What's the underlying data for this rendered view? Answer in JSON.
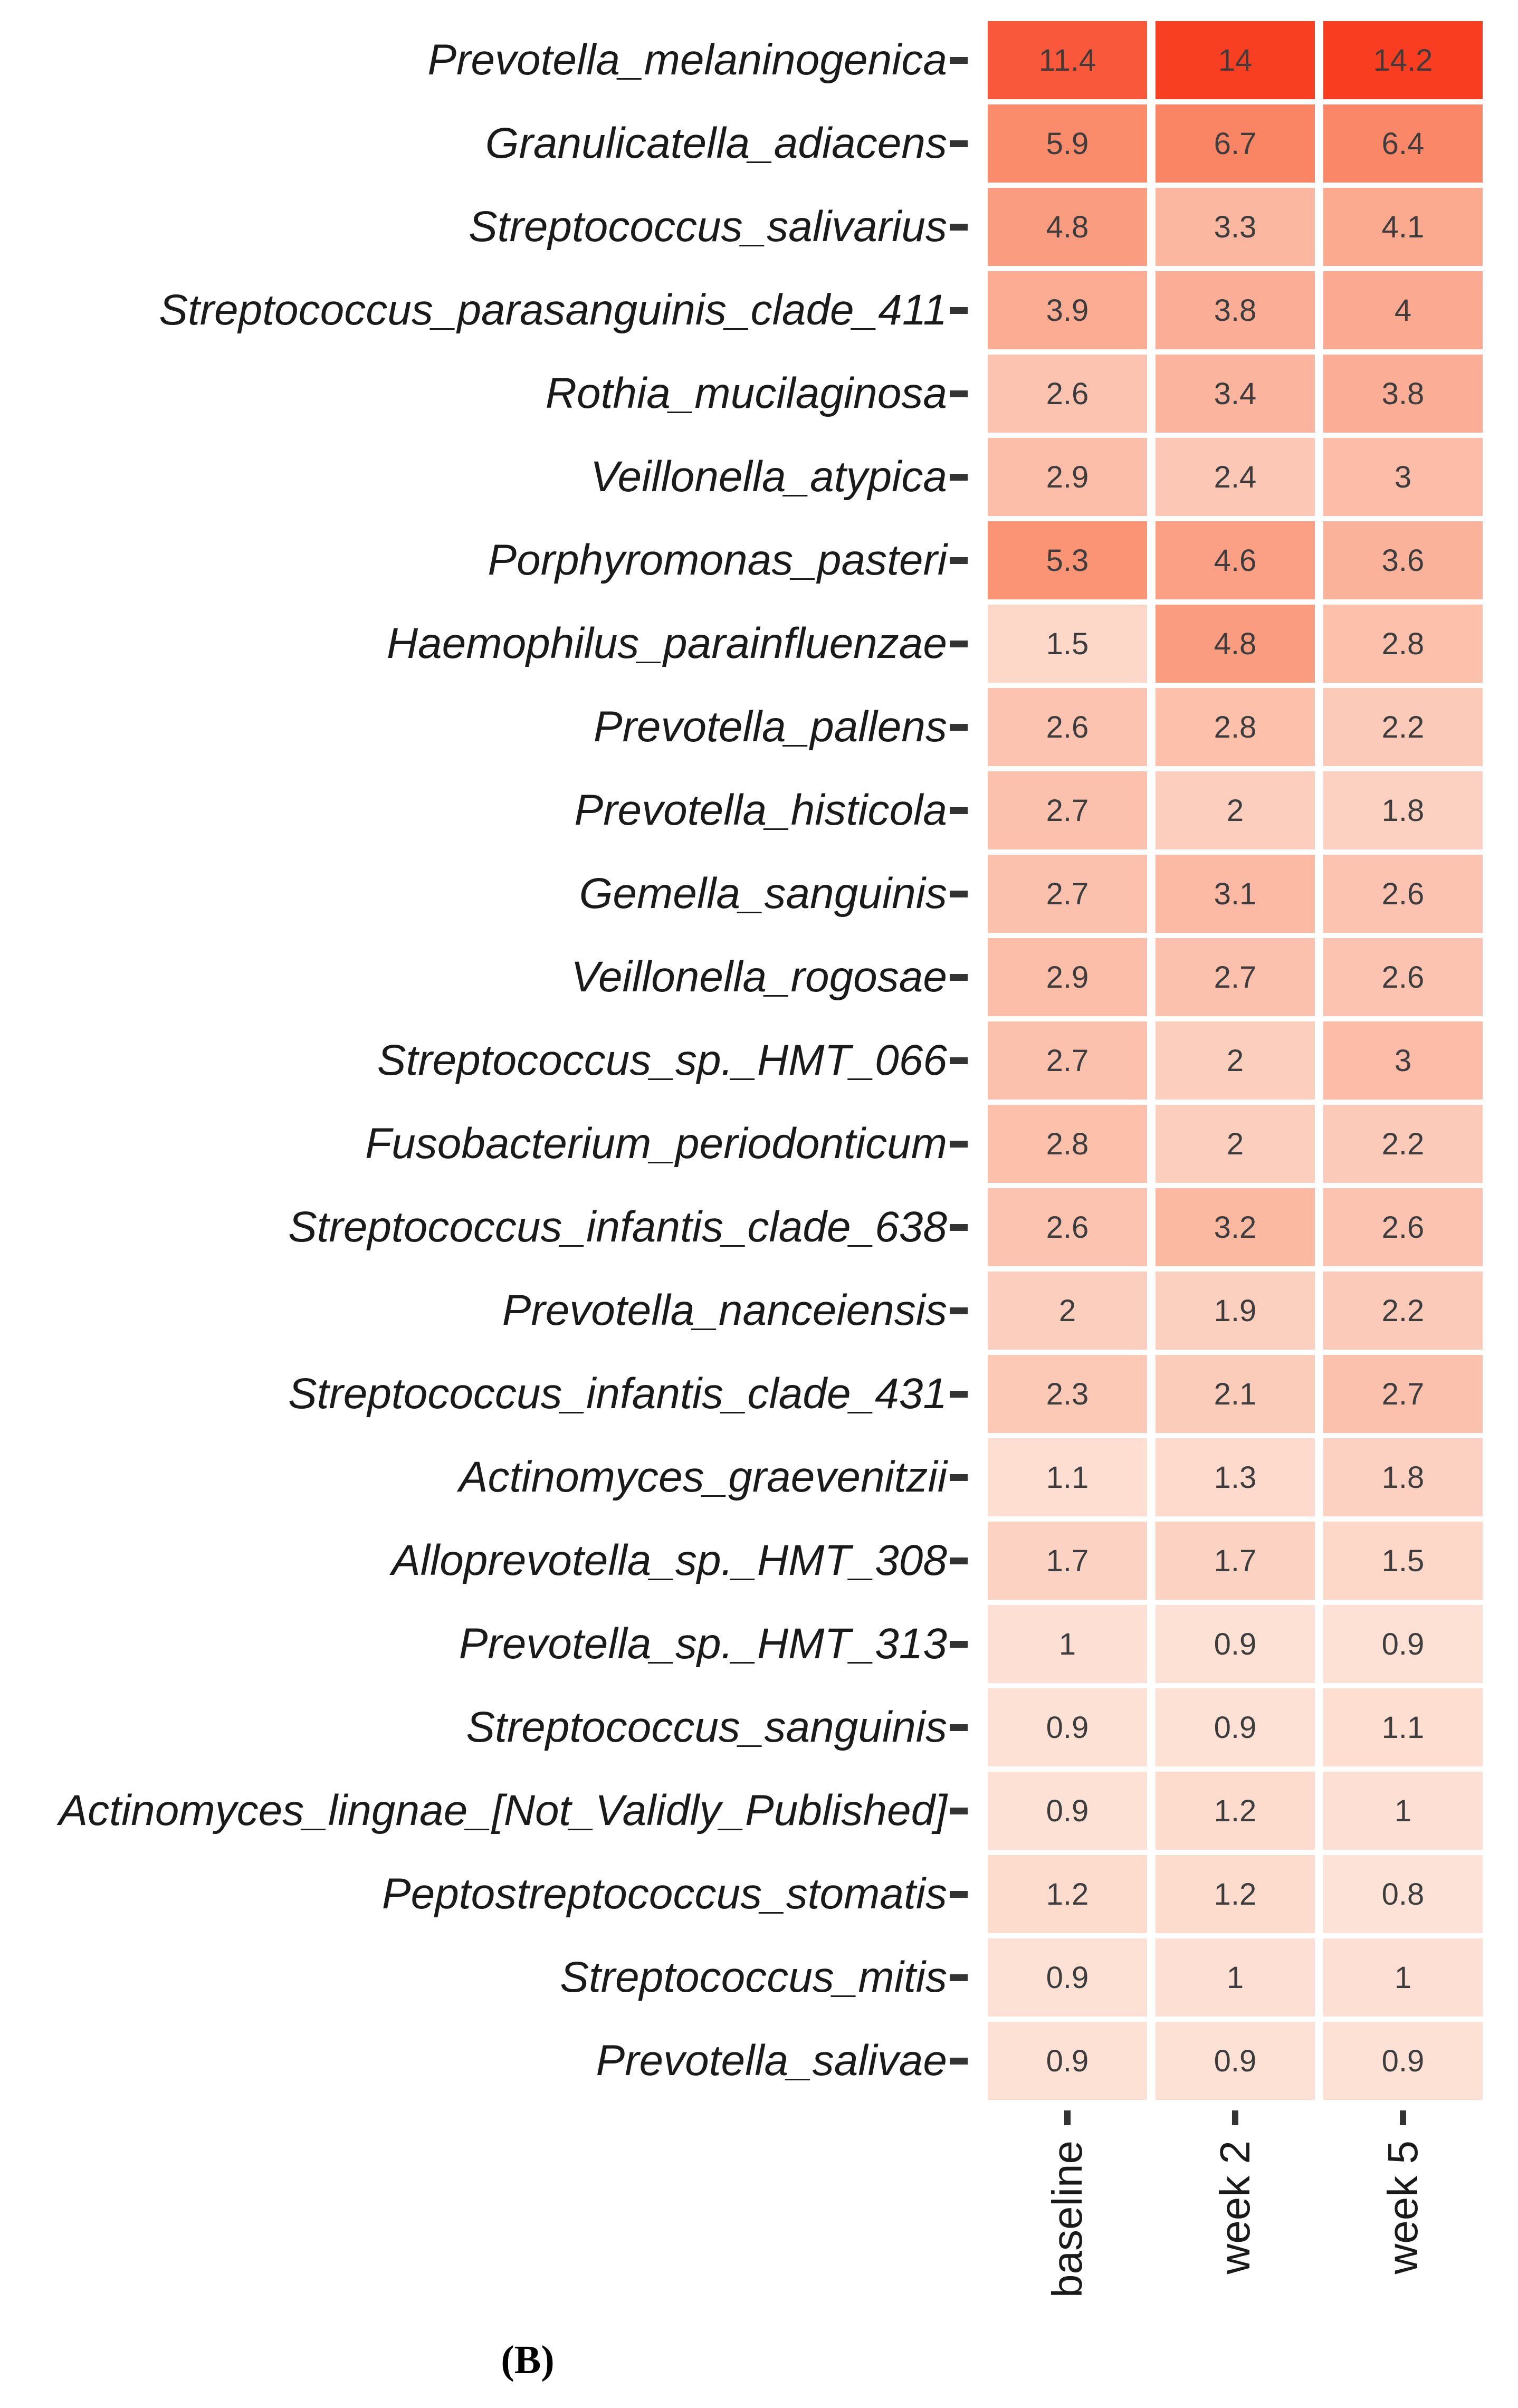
{
  "figure": {
    "caption": "(B)"
  },
  "chart_data": {
    "type": "heatmap",
    "title": "",
    "xlabel": "",
    "ylabel": "",
    "legend": "none",
    "grid": "off",
    "columns": [
      "baseline",
      "week 2",
      "week 5"
    ],
    "rows": [
      "Prevotella_melaninogenica",
      "Granulicatella_adiacens",
      "Streptococcus_salivarius",
      "Streptococcus_parasanguinis_clade_411",
      "Rothia_mucilaginosa",
      "Veillonella_atypica",
      "Porphyromonas_pasteri",
      "Haemophilus_parainfluenzae",
      "Prevotella_pallens",
      "Prevotella_histicola",
      "Gemella_sanguinis",
      "Veillonella_rogosae",
      "Streptococcus_sp._HMT_066",
      "Fusobacterium_periodonticum",
      "Streptococcus_infantis_clade_638",
      "Prevotella_nanceiensis",
      "Streptococcus_infantis_clade_431",
      "Actinomyces_graevenitzii",
      "Alloprevotella_sp._HMT_308",
      "Prevotella_sp._HMT_313",
      "Streptococcus_sanguinis",
      "Actinomyces_lingnae_[Not_Validly_Published]",
      "Peptostreptococcus_stomatis",
      "Streptococcus_mitis",
      "Prevotella_salivae"
    ],
    "values": [
      [
        11.4,
        14,
        14.2
      ],
      [
        5.9,
        6.7,
        6.4
      ],
      [
        4.8,
        3.3,
        4.1
      ],
      [
        3.9,
        3.8,
        4
      ],
      [
        2.6,
        3.4,
        3.8
      ],
      [
        2.9,
        2.4,
        3
      ],
      [
        5.3,
        4.6,
        3.6
      ],
      [
        1.5,
        4.8,
        2.8
      ],
      [
        2.6,
        2.8,
        2.2
      ],
      [
        2.7,
        2,
        1.8
      ],
      [
        2.7,
        3.1,
        2.6
      ],
      [
        2.9,
        2.7,
        2.6
      ],
      [
        2.7,
        2,
        3
      ],
      [
        2.8,
        2,
        2.2
      ],
      [
        2.6,
        3.2,
        2.6
      ],
      [
        2,
        1.9,
        2.2
      ],
      [
        2.3,
        2.1,
        2.7
      ],
      [
        1.1,
        1.3,
        1.8
      ],
      [
        1.7,
        1.7,
        1.5
      ],
      [
        1,
        0.9,
        0.9
      ],
      [
        0.9,
        0.9,
        1.1
      ],
      [
        0.9,
        1.2,
        1
      ],
      [
        1.2,
        1.2,
        0.8
      ],
      [
        0.9,
        1,
        1
      ],
      [
        0.9,
        0.9,
        0.9
      ]
    ],
    "value_min": 0.8,
    "value_max": 14.2,
    "color_scale": {
      "stops": [
        {
          "value": 0.8,
          "color": "#FDE3D7"
        },
        {
          "value": 5.5,
          "color": "#FA9070"
        },
        {
          "value": 14.2,
          "color": "#F93D20"
        }
      ]
    },
    "colors": {
      "axis_tick": "#333333",
      "row_label_text": "#1A1A1A",
      "cell_value_text": "#3D3D3D",
      "background": "#FFFFFF"
    }
  }
}
